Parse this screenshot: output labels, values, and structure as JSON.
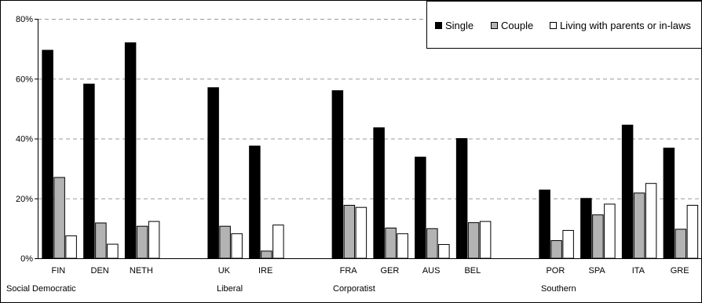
{
  "chart_data": {
    "type": "bar",
    "title": "",
    "xlabel": "",
    "ylabel": "",
    "ylim": [
      0,
      80
    ],
    "y_ticks": [
      "0%",
      "20%",
      "40%",
      "60%",
      "80%"
    ],
    "y_tick_values": [
      0,
      20,
      40,
      60,
      80
    ],
    "grid": true,
    "legend_position": "top-right",
    "colors": [
      "#000000",
      "#b3b3b3",
      "#ffffff"
    ],
    "categories": [
      "FIN",
      "DEN",
      "NETH",
      "UK",
      "IRE",
      "FRA",
      "GER",
      "AUS",
      "BEL",
      "POR",
      "SPA",
      "ITA",
      "GRE"
    ],
    "groups": [
      {
        "name": "Social Democratic",
        "categories": [
          "FIN",
          "DEN",
          "NETH"
        ]
      },
      {
        "name": "Liberal",
        "categories": [
          "UK",
          "IRE"
        ]
      },
      {
        "name": "Corporatist",
        "categories": [
          "FRA",
          "GER",
          "AUS",
          "BEL"
        ]
      },
      {
        "name": "Southern",
        "categories": [
          "POR",
          "SPA",
          "ITA",
          "GRE"
        ]
      }
    ],
    "series": [
      {
        "name": "Single",
        "values": [
          69.5,
          58.2,
          72.0,
          57.0,
          37.5,
          56.0,
          43.6,
          33.8,
          40.0,
          22.8,
          20.0,
          44.5,
          36.8
        ]
      },
      {
        "name": "Couple",
        "values": [
          27.0,
          11.8,
          10.7,
          10.7,
          2.4,
          17.7,
          10.1,
          9.9,
          11.9,
          5.9,
          14.5,
          21.8,
          9.7
        ]
      },
      {
        "name": "Living with parents or in-laws",
        "values": [
          7.5,
          4.7,
          12.3,
          8.2,
          11.1,
          17.0,
          8.2,
          4.6,
          12.3,
          9.3,
          18.1,
          25.0,
          17.7
        ]
      }
    ]
  }
}
